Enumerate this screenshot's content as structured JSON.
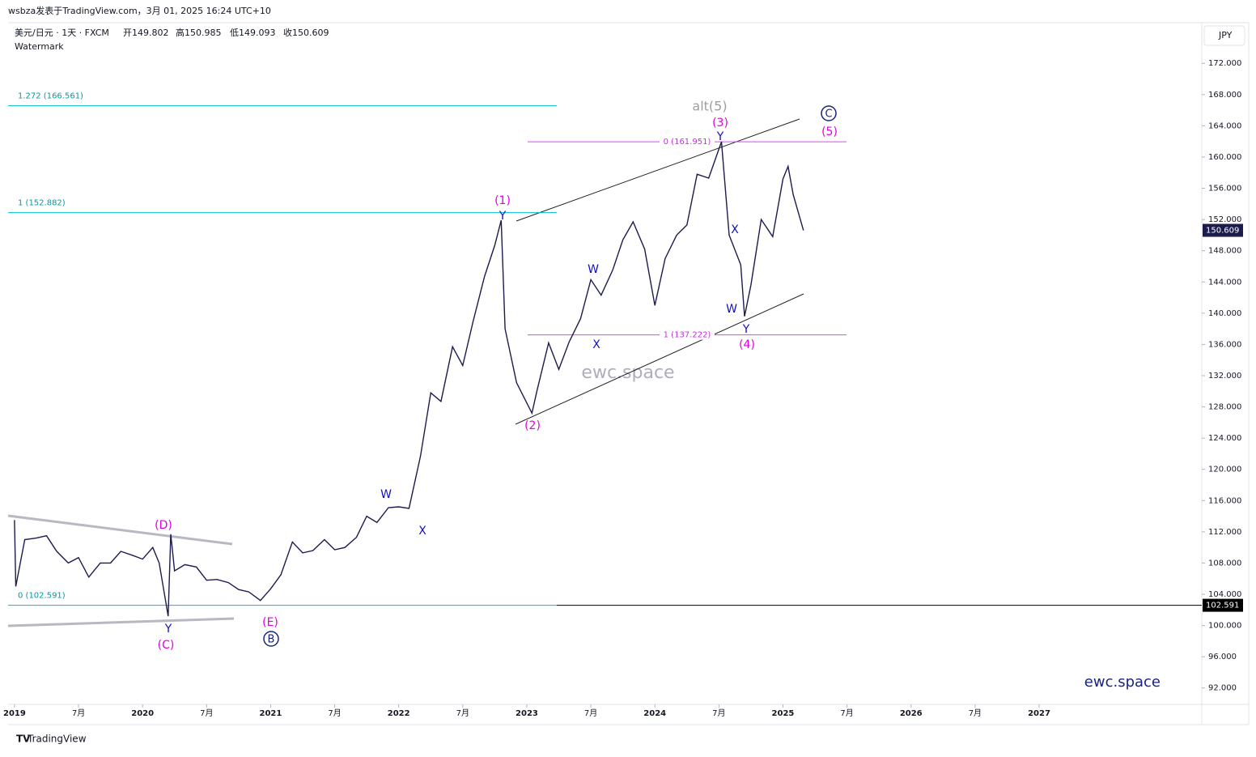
{
  "header": {
    "byline": "wsbza发表于TradingView.com，3月 01, 2025 16:24 UTC+10",
    "symbol": "美元/日元 · 1天 · FXCM",
    "ohlc": [
      "开149.802",
      "高150.985",
      "低149.093",
      "收150.609"
    ],
    "watermark_note": "Watermark",
    "currency": "JPY"
  },
  "chart_data": {
    "type": "line",
    "color": "#1c1b4d",
    "x": [
      2019.0,
      2019.01,
      2019.08,
      2019.17,
      2019.25,
      2019.33,
      2019.42,
      2019.5,
      2019.58,
      2019.67,
      2019.75,
      2019.83,
      2019.92,
      2020.0,
      2020.08,
      2020.13,
      2020.2,
      2020.22,
      2020.25,
      2020.33,
      2020.42,
      2020.5,
      2020.58,
      2020.67,
      2020.75,
      2020.83,
      2020.92,
      2021.0,
      2021.08,
      2021.17,
      2021.25,
      2021.33,
      2021.42,
      2021.5,
      2021.58,
      2021.67,
      2021.75,
      2021.83,
      2021.92,
      2022.0,
      2022.08,
      2022.17,
      2022.25,
      2022.33,
      2022.42,
      2022.5,
      2022.58,
      2022.67,
      2022.75,
      2022.8,
      2022.83,
      2022.92,
      2023.04,
      2023.08,
      2023.17,
      2023.25,
      2023.33,
      2023.42,
      2023.5,
      2023.58,
      2023.67,
      2023.75,
      2023.83,
      2023.92,
      2024.0,
      2024.08,
      2024.17,
      2024.25,
      2024.33,
      2024.42,
      2024.52,
      2024.58,
      2024.67,
      2024.7,
      2024.75,
      2024.83,
      2024.92,
      2025.0,
      2025.04,
      2025.08,
      2025.16
    ],
    "values": [
      113.5,
      105.0,
      111.0,
      111.2,
      111.5,
      109.5,
      108.0,
      108.7,
      106.2,
      108.0,
      108.0,
      109.5,
      109.0,
      108.5,
      110.0,
      108.0,
      101.2,
      111.7,
      107.0,
      107.8,
      107.5,
      105.8,
      105.9,
      105.5,
      104.6,
      104.3,
      103.2,
      104.7,
      106.5,
      110.7,
      109.3,
      109.6,
      111.0,
      109.7,
      110.0,
      111.3,
      114.0,
      113.2,
      115.1,
      115.2,
      115.0,
      121.7,
      129.8,
      128.7,
      135.7,
      133.3,
      138.9,
      144.7,
      148.7,
      151.9,
      138.0,
      131.1,
      127.2,
      130.1,
      136.2,
      132.8,
      136.3,
      139.3,
      144.3,
      142.3,
      145.5,
      149.4,
      151.7,
      148.2,
      141.0,
      147.0,
      150.0,
      151.3,
      157.8,
      157.3,
      161.95,
      150.0,
      146.2,
      139.6,
      143.6,
      152.0,
      149.8,
      157.2,
      158.8,
      155.2,
      150.6
    ],
    "xlim": [
      2018.95,
      2028.27
    ],
    "xticks": [
      2019,
      {
        "value": 2019.5,
        "label": "7月"
      },
      2020,
      {
        "value": 2020.5,
        "label": "7月"
      },
      2021,
      {
        "value": 2021.5,
        "label": "7月"
      },
      2022,
      {
        "value": 2022.5,
        "label": "7月"
      },
      2023,
      {
        "value": 2023.5,
        "label": "7月"
      },
      2024,
      {
        "value": 2024.5,
        "label": "7月"
      },
      2025,
      {
        "value": 2025.5,
        "label": "7月"
      },
      2026,
      {
        "value": 2026.5,
        "label": "7月"
      },
      2027
    ],
    "ylim": [
      89.9,
      177.0
    ],
    "yticks": [
      {
        "value": 92,
        "label": "92.000"
      },
      {
        "value": 96,
        "label": "96.000"
      },
      {
        "value": 100,
        "label": "100.000"
      },
      {
        "value": 104,
        "label": "104.000"
      },
      {
        "value": 108,
        "label": "108.000"
      },
      {
        "value": 112,
        "label": "112.000"
      },
      {
        "value": 116,
        "label": "116.000"
      },
      {
        "value": 120,
        "label": "120.000"
      },
      {
        "value": 124,
        "label": "124.000"
      },
      {
        "value": 128,
        "label": "128.000"
      },
      {
        "value": 132,
        "label": "132.000"
      },
      {
        "value": 136,
        "label": "136.000"
      },
      {
        "value": 140,
        "label": "140.000"
      },
      {
        "value": 144,
        "label": "144.000"
      },
      {
        "value": 148,
        "label": "148.000"
      },
      {
        "value": 152,
        "label": "152.000"
      },
      {
        "value": 156,
        "label": "156.000"
      },
      {
        "value": 160,
        "label": "160.000"
      },
      {
        "value": 164,
        "label": "164.000"
      },
      {
        "value": 168,
        "label": "168.000"
      },
      {
        "value": 172,
        "label": "172.000"
      }
    ],
    "fib_levels": [
      {
        "label": "1.272 (166.561)",
        "value": 166.561
      },
      {
        "label": "1 (152.882)",
        "value": 152.882
      },
      {
        "label": "0 (102.591)",
        "value": 102.591
      },
      {
        "label": "0 (161.951)",
        "value": 161.951
      },
      {
        "label": "1 (137.222)",
        "value": 137.222
      }
    ],
    "price_badges": [
      {
        "label": "150.609",
        "value": 150.609
      },
      {
        "label": "102.591",
        "value": 102.591
      }
    ],
    "wave_labels": [
      "alt(5)",
      "(3)",
      "Y",
      "C",
      "(5)",
      "(1)",
      "Y",
      "W",
      "X",
      "X",
      "W",
      "Y",
      "(4)",
      "(2)",
      "W",
      "X",
      "(D)",
      "Y",
      "(C)",
      "(E)",
      "B"
    ],
    "watermark": "ewc.space"
  },
  "footer": {
    "brand": "TradingView"
  }
}
